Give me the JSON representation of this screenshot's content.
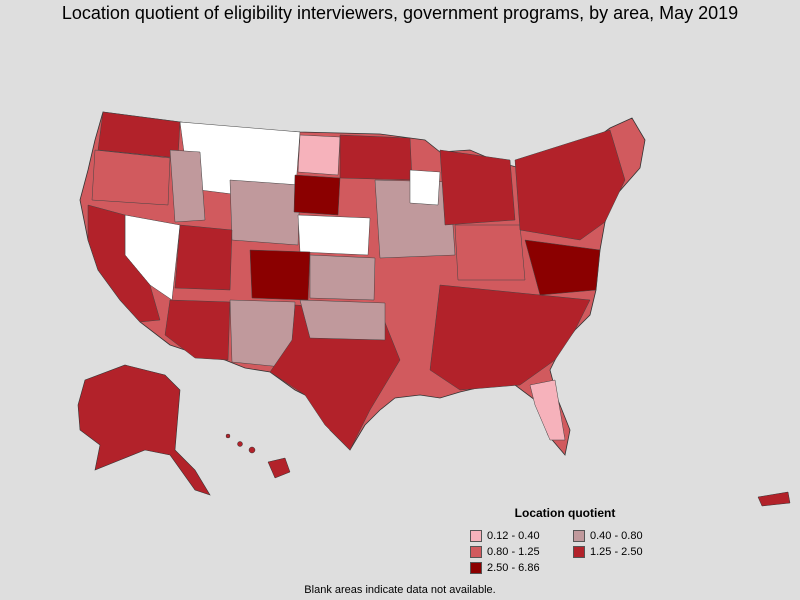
{
  "title": "Location quotient of eligibility interviewers, government programs, by area, May 2019",
  "legend": {
    "title": "Location quotient",
    "items": [
      {
        "label": "0.12 - 0.40",
        "color": "#f6b2bb"
      },
      {
        "label": "0.40 - 0.80",
        "color": "#c0999c"
      },
      {
        "label": "0.80 - 1.25",
        "color": "#d15a5e"
      },
      {
        "label": "1.25 - 2.50",
        "color": "#b2222a"
      },
      {
        "label": "2.50 - 6.86",
        "color": "#8b0000"
      }
    ]
  },
  "note": "Blank areas indicate data not available.",
  "map_colors": {
    "background": "#dedede",
    "no_data": "#ffffff",
    "border": "#333333"
  }
}
